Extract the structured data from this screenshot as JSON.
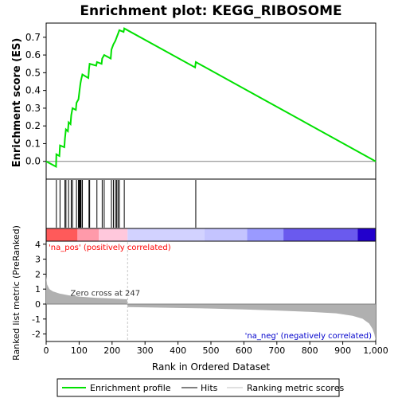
{
  "title": "Enrichment plot: KEGG_RIBOSOME",
  "colors": {
    "es_line": "#00e000",
    "hit_line": "#000000",
    "metric_fill": "#b0b0b0",
    "zero_line": "#808080",
    "cross_line": "#c8c8c8",
    "pos_label": "#ff0000",
    "neg_label": "#0000cc"
  },
  "chart_data": [
    {
      "type": "line",
      "name": "enrichment-score-panel",
      "ylabel": "Enrichment score (ES)",
      "xlim": [
        0,
        1000
      ],
      "ylim": [
        -0.1,
        0.78
      ],
      "yticks": [
        0.0,
        0.1,
        0.2,
        0.3,
        0.4,
        0.5,
        0.6,
        0.7
      ],
      "ytick_labels": [
        "0.0",
        "0.1",
        "0.2",
        "0.3",
        "0.4",
        "0.5",
        "0.6",
        "0.7"
      ],
      "es_points": [
        [
          0,
          0.0
        ],
        [
          30,
          -0.03
        ],
        [
          31,
          0.04
        ],
        [
          40,
          0.03
        ],
        [
          42,
          0.09
        ],
        [
          55,
          0.08
        ],
        [
          57,
          0.13
        ],
        [
          60,
          0.18
        ],
        [
          66,
          0.17
        ],
        [
          68,
          0.22
        ],
        [
          74,
          0.21
        ],
        [
          76,
          0.26
        ],
        [
          80,
          0.3
        ],
        [
          90,
          0.29
        ],
        [
          92,
          0.33
        ],
        [
          98,
          0.35
        ],
        [
          100,
          0.38
        ],
        [
          102,
          0.41
        ],
        [
          104,
          0.44
        ],
        [
          106,
          0.46
        ],
        [
          110,
          0.49
        ],
        [
          128,
          0.47
        ],
        [
          130,
          0.52
        ],
        [
          132,
          0.55
        ],
        [
          152,
          0.54
        ],
        [
          154,
          0.56
        ],
        [
          168,
          0.55
        ],
        [
          170,
          0.58
        ],
        [
          176,
          0.6
        ],
        [
          196,
          0.58
        ],
        [
          198,
          0.63
        ],
        [
          204,
          0.66
        ],
        [
          210,
          0.68
        ],
        [
          214,
          0.7
        ],
        [
          218,
          0.72
        ],
        [
          222,
          0.74
        ],
        [
          235,
          0.73
        ],
        [
          237,
          0.75
        ],
        [
          452,
          0.53
        ],
        [
          454,
          0.56
        ],
        [
          1000,
          0.0
        ]
      ],
      "legend": [
        "Enrichment profile",
        "Hits",
        "Ranking metric scores"
      ],
      "legend_placement": "bottom"
    },
    {
      "type": "hits",
      "name": "hit-markers-panel",
      "hits": [
        31,
        42,
        57,
        60,
        68,
        76,
        80,
        92,
        98,
        100,
        102,
        104,
        106,
        110,
        130,
        132,
        154,
        170,
        176,
        198,
        204,
        210,
        214,
        218,
        222,
        237,
        454
      ]
    },
    {
      "type": "heatmap",
      "name": "rank-color-bar",
      "bands": [
        {
          "from": 0,
          "to": 95,
          "color": "#ff5a5a"
        },
        {
          "from": 95,
          "to": 160,
          "color": "#ff9aaa"
        },
        {
          "from": 160,
          "to": 247,
          "color": "#ffc8dc"
        },
        {
          "from": 247,
          "to": 480,
          "color": "#d2d2ff"
        },
        {
          "from": 480,
          "to": 610,
          "color": "#c4c4ff"
        },
        {
          "from": 610,
          "to": 720,
          "color": "#9a9aff"
        },
        {
          "from": 720,
          "to": 945,
          "color": "#6a5aee"
        },
        {
          "from": 945,
          "to": 1000,
          "color": "#2200cc"
        }
      ]
    },
    {
      "type": "area",
      "name": "ranked-metric-panel",
      "xlabel": "Rank in Ordered Dataset",
      "ylabel": "Ranked list metric (PreRanked)",
      "xlim": [
        0,
        1000
      ],
      "ylim": [
        -2.5,
        4.2
      ],
      "xticks": [
        0,
        100,
        200,
        300,
        400,
        500,
        600,
        700,
        800,
        900,
        1000
      ],
      "xtick_labels": [
        "0",
        "100",
        "200",
        "300",
        "400",
        "500",
        "600",
        "700",
        "800",
        "900",
        "1,000"
      ],
      "yticks": [
        -2,
        -1,
        0,
        1,
        2,
        3,
        4
      ],
      "ytick_labels": [
        "-2",
        "-1",
        "0",
        "1",
        "2",
        "3",
        "4"
      ],
      "metric_points": [
        [
          0,
          1.85
        ],
        [
          3,
          1.3
        ],
        [
          10,
          1.0
        ],
        [
          20,
          0.85
        ],
        [
          40,
          0.7
        ],
        [
          70,
          0.58
        ],
        [
          100,
          0.5
        ],
        [
          150,
          0.42
        ],
        [
          200,
          0.37
        ],
        [
          246,
          0.32
        ],
        [
          247,
          -0.2
        ],
        [
          300,
          -0.22
        ],
        [
          400,
          -0.26
        ],
        [
          500,
          -0.3
        ],
        [
          600,
          -0.36
        ],
        [
          700,
          -0.43
        ],
        [
          800,
          -0.52
        ],
        [
          880,
          -0.62
        ],
        [
          930,
          -0.78
        ],
        [
          960,
          -0.98
        ],
        [
          980,
          -1.3
        ],
        [
          990,
          -1.65
        ],
        [
          996,
          -2.0
        ],
        [
          1000,
          -2.45
        ]
      ],
      "zero_cross": 247,
      "zero_cross_label": "Zero cross at 247",
      "pos_label": "'na_pos' (positively correlated)",
      "neg_label": "'na_neg' (negatively correlated)"
    }
  ]
}
